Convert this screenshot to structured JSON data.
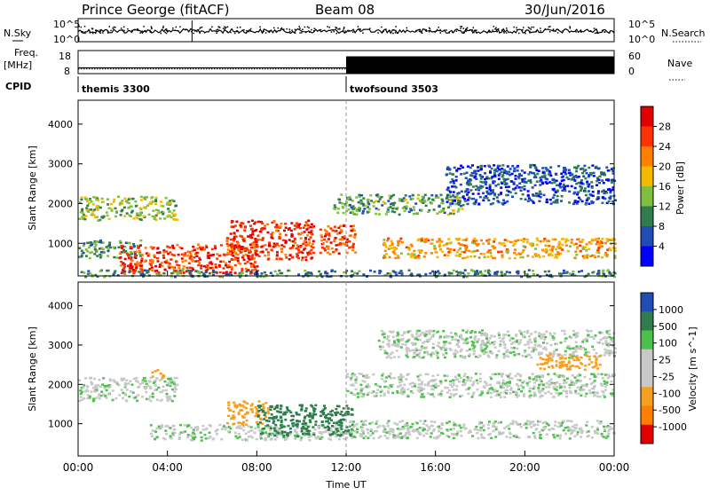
{
  "header": {
    "station": "Prince George (fitACF)",
    "beam": "Beam 08",
    "date": "30/Jun/2016"
  },
  "noise_panel": {
    "left_label": "N.Sky",
    "right_label": "N.Search",
    "ytick_top": "10^5",
    "ytick_bottom": "10^0",
    "right_ytick_top": "10^5",
    "right_ytick_bottom": "10^0"
  },
  "freq_panel": {
    "left_label_1": "Freq.",
    "left_label_2": "[MHz]",
    "right_label": "Nave",
    "ytick_top": "18",
    "ytick_bottom": "8",
    "right_ytick_top": "60",
    "right_ytick_bottom": "0",
    "freq_MHz": 10.5,
    "nave_segments": [
      {
        "start_h": 0,
        "end_h": 12,
        "nave_range": [
          10,
          15
        ]
      },
      {
        "start_h": 12,
        "end_h": 24,
        "nave_range": [
          0,
          45
        ]
      }
    ]
  },
  "cpid": {
    "label": "CPID",
    "modes": [
      {
        "name": "themis 3300",
        "start_h": 0
      },
      {
        "name": "twofsound 3503",
        "start_h": 12
      }
    ]
  },
  "chart_data": [
    {
      "type": "heatmap",
      "title": "",
      "xlabel": "",
      "ylabel": "Slant Range [km]",
      "x_range_h": [
        0,
        24
      ],
      "ylim": [
        180,
        4600
      ],
      "yticks": [
        1000,
        2000,
        3000,
        4000
      ],
      "colorbar_label": "Power [dB]",
      "colorbar_ticks": [
        "28",
        "24",
        "20",
        "16",
        "12",
        "8",
        "4"
      ],
      "colors": [
        "#0000ff",
        "#1f4db3",
        "#2f7d4f",
        "#7fbf3f",
        "#f5b800",
        "#ff8000",
        "#ff3300",
        "#e00000"
      ],
      "bands": [
        {
          "x": [
            0.0,
            4.4
          ],
          "y": [
            1600,
            2200
          ],
          "value": 14
        },
        {
          "x": [
            0.0,
            2.8
          ],
          "y": [
            650,
            1100
          ],
          "value": 11
        },
        {
          "x": [
            1.8,
            8.0
          ],
          "y": [
            250,
            1000
          ],
          "value": 26
        },
        {
          "x": [
            6.6,
            10.5
          ],
          "y": [
            600,
            1600
          ],
          "value": 27
        },
        {
          "x": [
            10.8,
            12.4
          ],
          "y": [
            750,
            1500
          ],
          "value": 26
        },
        {
          "x": [
            11.4,
            17.2
          ],
          "y": [
            1750,
            2250
          ],
          "value": 12
        },
        {
          "x": [
            13.6,
            24.0
          ],
          "y": [
            650,
            1150
          ],
          "value": 20
        },
        {
          "x": [
            16.4,
            24.0
          ],
          "y": [
            2000,
            3000
          ],
          "value": 6
        },
        {
          "x": [
            0.0,
            24.0
          ],
          "y": [
            180,
            350
          ],
          "value": 9
        }
      ]
    },
    {
      "type": "heatmap",
      "title": "",
      "xlabel": "Time UT",
      "ylabel": "Slant Range [km]",
      "x_range_h": [
        0,
        24
      ],
      "xticks": [
        "00:00",
        "04:00",
        "08:00",
        "12:00",
        "16:00",
        "20:00",
        "00:00"
      ],
      "ylim": [
        180,
        4600
      ],
      "yticks": [
        1000,
        2000,
        3000,
        4000
      ],
      "colorbar_label": "Velocity [m s^-1]",
      "colorbar_ticks": [
        "1000",
        "500",
        "100",
        "25",
        "-25",
        "-100",
        "-500",
        "-1000"
      ],
      "colors": [
        "#e00000",
        "#ff8000",
        "#f5a020",
        "#c8c8c8",
        "#c8c8c8",
        "#4cc24c",
        "#2f7d4f",
        "#1f4db3",
        "#1a1aff"
      ],
      "bands": [
        {
          "x": [
            0.0,
            4.4
          ],
          "y": [
            1600,
            2200
          ],
          "value": 0
        },
        {
          "x": [
            3.2,
            12.0
          ],
          "y": [
            600,
            1000
          ],
          "value": 0
        },
        {
          "x": [
            6.6,
            8.5
          ],
          "y": [
            1000,
            1600
          ],
          "value": -250
        },
        {
          "x": [
            8.0,
            10.6
          ],
          "y": [
            700,
            1500
          ],
          "value": 300
        },
        {
          "x": [
            10.8,
            12.3
          ],
          "y": [
            700,
            1500
          ],
          "value": 400
        },
        {
          "x": [
            12.0,
            24.0
          ],
          "y": [
            650,
            1100
          ],
          "value": 0
        },
        {
          "x": [
            12.0,
            24.0
          ],
          "y": [
            1700,
            2300
          ],
          "value": 0
        },
        {
          "x": [
            13.4,
            24.0
          ],
          "y": [
            2700,
            3400
          ],
          "value": 0
        },
        {
          "x": [
            20.4,
            23.4
          ],
          "y": [
            2400,
            2800
          ],
          "value": -200
        },
        {
          "x": [
            3.2,
            3.8
          ],
          "y": [
            2200,
            2400
          ],
          "value": -300
        }
      ]
    }
  ]
}
